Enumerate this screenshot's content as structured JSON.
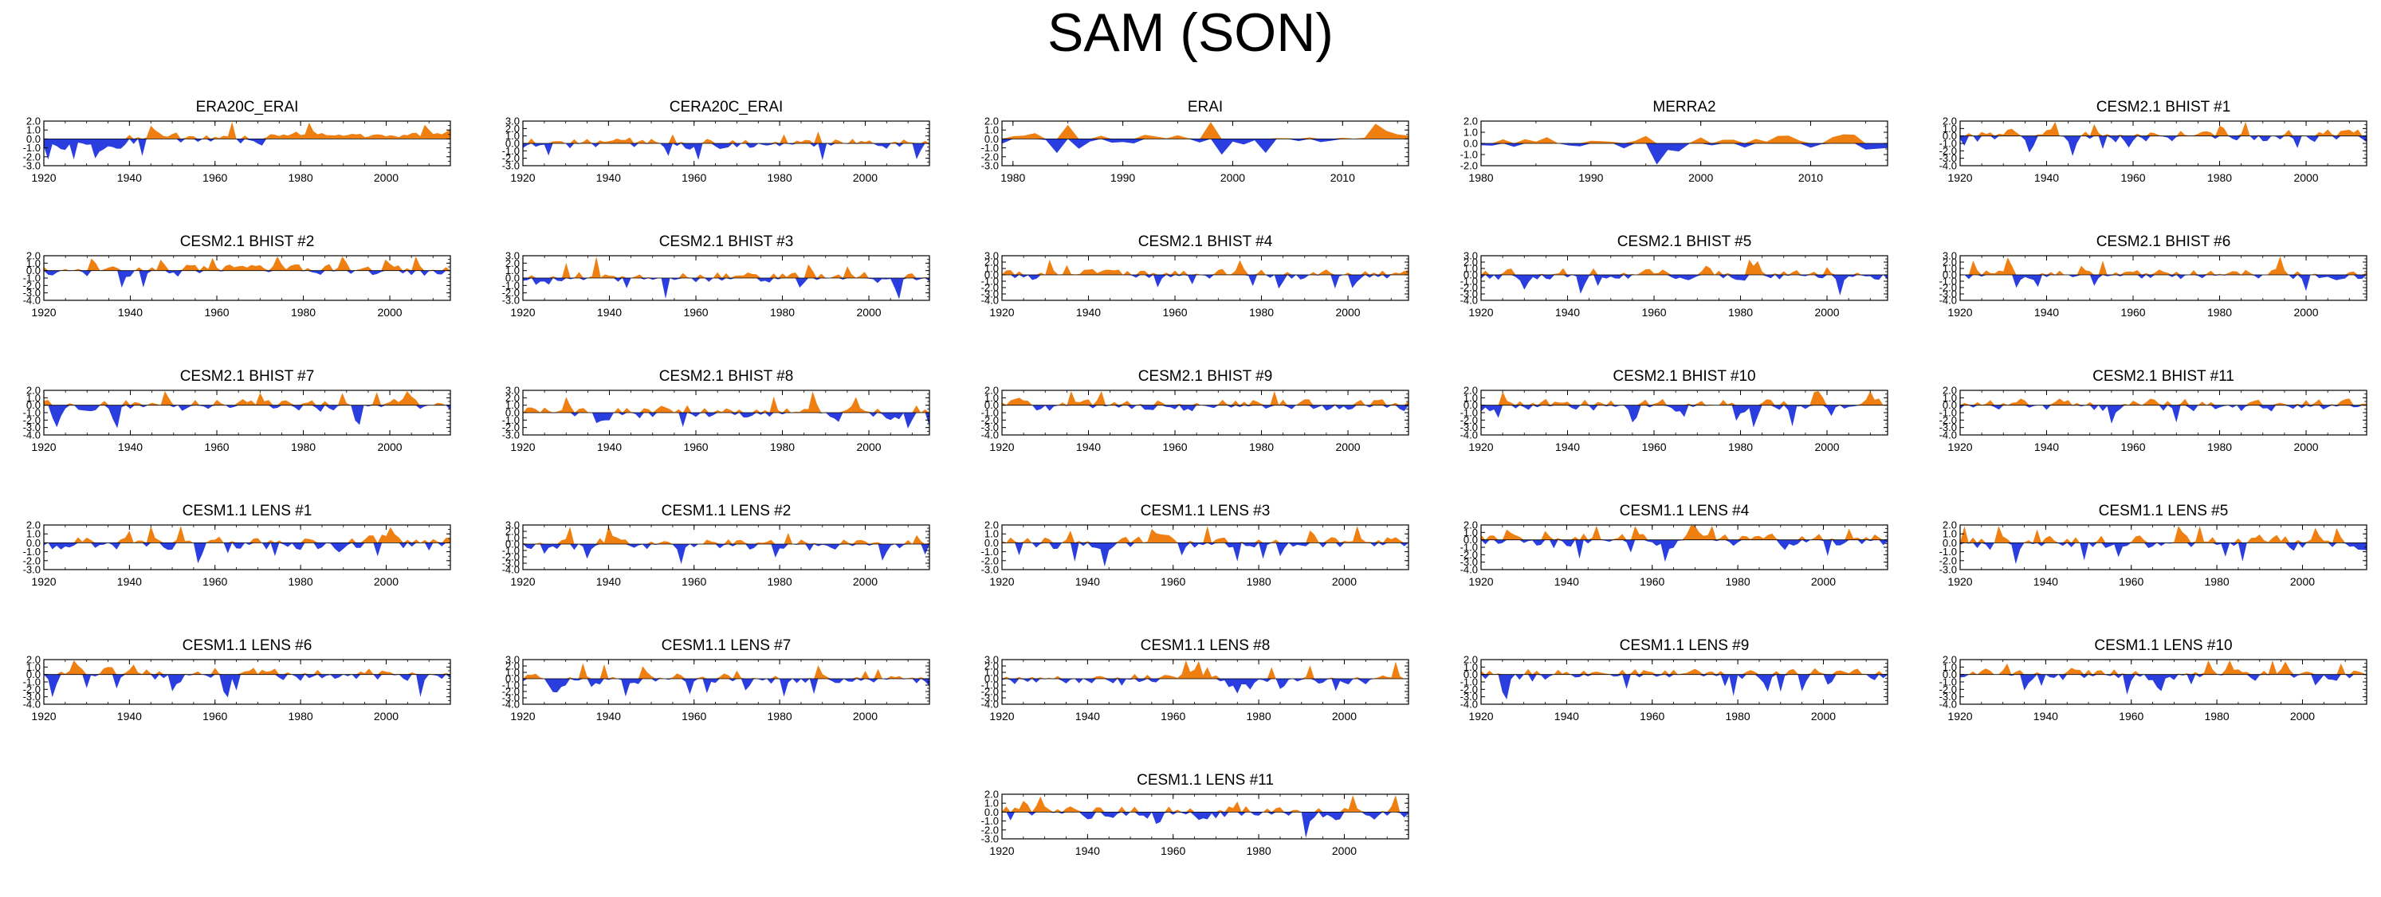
{
  "title": "SAM (SON)",
  "colors": {
    "positive": "#f07f12",
    "negative": "#2a3ee0",
    "axis": "#000000"
  },
  "chart_data": [
    {
      "type": "area",
      "title": "ERA20C_ERAI",
      "years": [
        1920,
        2015
      ],
      "ylim": [
        -3,
        2
      ],
      "yticks": [
        "2.0",
        "1.0",
        "0.0",
        "-1.0",
        "-2.0",
        "-3.0"
      ],
      "xticks": [
        "1920",
        "1940",
        "1960",
        "1980",
        "2000"
      ],
      "seed": 11,
      "scale": 0.85
    },
    {
      "type": "area",
      "title": "CERA20C_ERAI",
      "years": [
        1920,
        2015
      ],
      "ylim": [
        -3,
        3
      ],
      "yticks": [
        "3.0",
        "2.0",
        "1.0",
        "0.0",
        "-1.0",
        "-2.0",
        "-3.0"
      ],
      "xticks": [
        "1920",
        "1940",
        "1960",
        "1980",
        "2000"
      ],
      "seed": 23,
      "scale": 0.9
    },
    {
      "type": "area",
      "title": "ERAI",
      "years": [
        1979,
        2016
      ],
      "ylim": [
        -3,
        2
      ],
      "yticks": [
        "2.0",
        "1.0",
        "0.0",
        "-1.0",
        "-2.0",
        "-3.0"
      ],
      "xticks": [
        "1980",
        "1990",
        "2000",
        "2010"
      ],
      "seed": 37,
      "scale": 0.8
    },
    {
      "type": "area",
      "title": "MERRA2",
      "years": [
        1980,
        2017
      ],
      "ylim": [
        -2,
        2
      ],
      "yticks": [
        "2.0",
        "1.0",
        "0.0",
        "-1.0",
        "-2.0"
      ],
      "xticks": [
        "1980",
        "1990",
        "2000",
        "2010"
      ],
      "seed": 41,
      "scale": 0.8
    },
    {
      "type": "area",
      "title": "CESM2.1 BHIST #1",
      "years": [
        1920,
        2014
      ],
      "ylim": [
        -4,
        2
      ],
      "yticks": [
        "2.0",
        "1.0",
        "0.0",
        "-1.0",
        "-2.0",
        "-3.0",
        "-4.0"
      ],
      "xticks": [
        "1920",
        "1940",
        "1960",
        "1980",
        "2000"
      ],
      "seed": 53,
      "scale": 1.0
    },
    {
      "type": "area",
      "title": "CESM2.1 BHIST #2",
      "years": [
        1920,
        2014
      ],
      "ylim": [
        -4,
        2
      ],
      "yticks": [
        "2.0",
        "1.0",
        "0.0",
        "-1.0",
        "-2.0",
        "-3.0",
        "-4.0"
      ],
      "xticks": [
        "1920",
        "1940",
        "1960",
        "1980",
        "2000"
      ],
      "seed": 61,
      "scale": 1.0
    },
    {
      "type": "area",
      "title": "CESM2.1 BHIST #3",
      "years": [
        1920,
        2014
      ],
      "ylim": [
        -3,
        3
      ],
      "yticks": [
        "3.0",
        "2.0",
        "1.0",
        "0.0",
        "-1.0",
        "-2.0",
        "-3.0"
      ],
      "xticks": [
        "1920",
        "1940",
        "1960",
        "1980",
        "2000"
      ],
      "seed": 67,
      "scale": 1.0
    },
    {
      "type": "area",
      "title": "CESM2.1 BHIST #4",
      "years": [
        1920,
        2014
      ],
      "ylim": [
        -4,
        3
      ],
      "yticks": [
        "3.0",
        "2.0",
        "1.0",
        "0.0",
        "-1.0",
        "-2.0",
        "-3.0",
        "-4.0"
      ],
      "xticks": [
        "1920",
        "1940",
        "1960",
        "1980",
        "2000"
      ],
      "seed": 71,
      "scale": 1.0
    },
    {
      "type": "area",
      "title": "CESM2.1 BHIST #5",
      "years": [
        1920,
        2014
      ],
      "ylim": [
        -4,
        3
      ],
      "yticks": [
        "3.0",
        "2.0",
        "1.0",
        "0.0",
        "-1.0",
        "-2.0",
        "-3.0",
        "-4.0"
      ],
      "xticks": [
        "1920",
        "1940",
        "1960",
        "1980",
        "2000"
      ],
      "seed": 79,
      "scale": 1.0
    },
    {
      "type": "area",
      "title": "CESM2.1 BHIST #6",
      "years": [
        1920,
        2014
      ],
      "ylim": [
        -4,
        3
      ],
      "yticks": [
        "3.0",
        "2.0",
        "1.0",
        "0.0",
        "-1.0",
        "-2.0",
        "-3.0",
        "-4.0"
      ],
      "xticks": [
        "1920",
        "1940",
        "1960",
        "1980",
        "2000"
      ],
      "seed": 83,
      "scale": 1.0
    },
    {
      "type": "area",
      "title": "CESM2.1 BHIST #7",
      "years": [
        1920,
        2014
      ],
      "ylim": [
        -4,
        2
      ],
      "yticks": [
        "2.0",
        "1.0",
        "0.0",
        "-1.0",
        "-2.0",
        "-3.0",
        "-4.0"
      ],
      "xticks": [
        "1920",
        "1940",
        "1960",
        "1980",
        "2000"
      ],
      "seed": 89,
      "scale": 1.0
    },
    {
      "type": "area",
      "title": "CESM2.1 BHIST #8",
      "years": [
        1920,
        2014
      ],
      "ylim": [
        -3,
        3
      ],
      "yticks": [
        "3.0",
        "2.0",
        "1.0",
        "0.0",
        "-1.0",
        "-2.0",
        "-3.0"
      ],
      "xticks": [
        "1920",
        "1940",
        "1960",
        "1980",
        "2000"
      ],
      "seed": 97,
      "scale": 1.0
    },
    {
      "type": "area",
      "title": "CESM2.1 BHIST #9",
      "years": [
        1920,
        2014
      ],
      "ylim": [
        -4,
        2
      ],
      "yticks": [
        "2.0",
        "1.0",
        "0.0",
        "-1.0",
        "-2.0",
        "-3.0",
        "-4.0"
      ],
      "xticks": [
        "1920",
        "1940",
        "1960",
        "1980",
        "2000"
      ],
      "seed": 101,
      "scale": 1.0
    },
    {
      "type": "area",
      "title": "CESM2.1 BHIST #10",
      "years": [
        1920,
        2014
      ],
      "ylim": [
        -4,
        2
      ],
      "yticks": [
        "2.0",
        "1.0",
        "0.0",
        "-1.0",
        "-2.0",
        "-3.0",
        "-4.0"
      ],
      "xticks": [
        "1920",
        "1940",
        "1960",
        "1980",
        "2000"
      ],
      "seed": 103,
      "scale": 1.0
    },
    {
      "type": "area",
      "title": "CESM2.1 BHIST #11",
      "years": [
        1920,
        2014
      ],
      "ylim": [
        -4,
        2
      ],
      "yticks": [
        "2.0",
        "1.0",
        "0.0",
        "-1.0",
        "-2.0",
        "-3.0",
        "-4.0"
      ],
      "xticks": [
        "1920",
        "1940",
        "1960",
        "1980",
        "2000"
      ],
      "seed": 107,
      "scale": 1.0
    },
    {
      "type": "area",
      "title": "CESM1.1 LENS #1",
      "years": [
        1920,
        2015
      ],
      "ylim": [
        -3,
        2
      ],
      "yticks": [
        "2.0",
        "1.0",
        "0.0",
        "-1.0",
        "-2.0",
        "-3.0"
      ],
      "xticks": [
        "1920",
        "1940",
        "1960",
        "1980",
        "2000"
      ],
      "seed": 109,
      "scale": 1.0
    },
    {
      "type": "area",
      "title": "CESM1.1 LENS #2",
      "years": [
        1920,
        2015
      ],
      "ylim": [
        -4,
        3
      ],
      "yticks": [
        "3.0",
        "2.0",
        "1.0",
        "0.0",
        "-1.0",
        "-2.0",
        "-3.0",
        "-4.0"
      ],
      "xticks": [
        "1920",
        "1940",
        "1960",
        "1980",
        "2000"
      ],
      "seed": 113,
      "scale": 1.0
    },
    {
      "type": "area",
      "title": "CESM1.1 LENS #3",
      "years": [
        1920,
        2015
      ],
      "ylim": [
        -3,
        2
      ],
      "yticks": [
        "2.0",
        "1.0",
        "0.0",
        "-1.0",
        "-2.0",
        "-3.0"
      ],
      "xticks": [
        "1920",
        "1940",
        "1960",
        "1980",
        "2000"
      ],
      "seed": 127,
      "scale": 1.0
    },
    {
      "type": "area",
      "title": "CESM1.1 LENS #4",
      "years": [
        1920,
        2015
      ],
      "ylim": [
        -4,
        2
      ],
      "yticks": [
        "2.0",
        "1.0",
        "0.0",
        "-1.0",
        "-2.0",
        "-3.0",
        "-4.0"
      ],
      "xticks": [
        "1920",
        "1940",
        "1960",
        "1980",
        "2000"
      ],
      "seed": 131,
      "scale": 1.0
    },
    {
      "type": "area",
      "title": "CESM1.1 LENS #5",
      "years": [
        1920,
        2015
      ],
      "ylim": [
        -3,
        2
      ],
      "yticks": [
        "2.0",
        "1.0",
        "0.0",
        "-1.0",
        "-2.0",
        "-3.0"
      ],
      "xticks": [
        "1920",
        "1940",
        "1960",
        "1980",
        "2000"
      ],
      "seed": 137,
      "scale": 1.0
    },
    {
      "type": "area",
      "title": "CESM1.1 LENS #6",
      "years": [
        1920,
        2015
      ],
      "ylim": [
        -4,
        2
      ],
      "yticks": [
        "2.0",
        "1.0",
        "0.0",
        "-1.0",
        "-2.0",
        "-3.0",
        "-4.0"
      ],
      "xticks": [
        "1920",
        "1940",
        "1960",
        "1980",
        "2000"
      ],
      "seed": 139,
      "scale": 1.0
    },
    {
      "type": "area",
      "title": "CESM1.1 LENS #7",
      "years": [
        1920,
        2015
      ],
      "ylim": [
        -4,
        3
      ],
      "yticks": [
        "3.0",
        "2.0",
        "1.0",
        "0.0",
        "-1.0",
        "-2.0",
        "-3.0",
        "-4.0"
      ],
      "xticks": [
        "1920",
        "1940",
        "1960",
        "1980",
        "2000"
      ],
      "seed": 149,
      "scale": 1.0
    },
    {
      "type": "area",
      "title": "CESM1.1 LENS #8",
      "years": [
        1920,
        2015
      ],
      "ylim": [
        -4,
        3
      ],
      "yticks": [
        "3.0",
        "2.0",
        "1.0",
        "0.0",
        "-1.0",
        "-2.0",
        "-3.0",
        "-4.0"
      ],
      "xticks": [
        "1920",
        "1940",
        "1960",
        "1980",
        "2000"
      ],
      "seed": 151,
      "scale": 1.0
    },
    {
      "type": "area",
      "title": "CESM1.1 LENS #9",
      "years": [
        1920,
        2015
      ],
      "ylim": [
        -4,
        2
      ],
      "yticks": [
        "2.0",
        "1.0",
        "0.0",
        "-1.0",
        "-2.0",
        "-3.0",
        "-4.0"
      ],
      "xticks": [
        "1920",
        "1940",
        "1960",
        "1980",
        "2000"
      ],
      "seed": 157,
      "scale": 1.0
    },
    {
      "type": "area",
      "title": "CESM1.1 LENS #10",
      "years": [
        1920,
        2015
      ],
      "ylim": [
        -4,
        2
      ],
      "yticks": [
        "2.0",
        "1.0",
        "0.0",
        "-1.0",
        "-2.0",
        "-3.0",
        "-4.0"
      ],
      "xticks": [
        "1920",
        "1940",
        "1960",
        "1980",
        "2000"
      ],
      "seed": 163,
      "scale": 1.0
    },
    {
      "type": "area",
      "title": "CESM1.1 LENS #11",
      "years": [
        1920,
        2015
      ],
      "ylim": [
        -3,
        2
      ],
      "yticks": [
        "2.0",
        "1.0",
        "0.0",
        "-1.0",
        "-2.0",
        "-3.0"
      ],
      "xticks": [
        "1920",
        "1940",
        "1960",
        "1980",
        "2000"
      ],
      "seed": 167,
      "scale": 1.0
    }
  ]
}
